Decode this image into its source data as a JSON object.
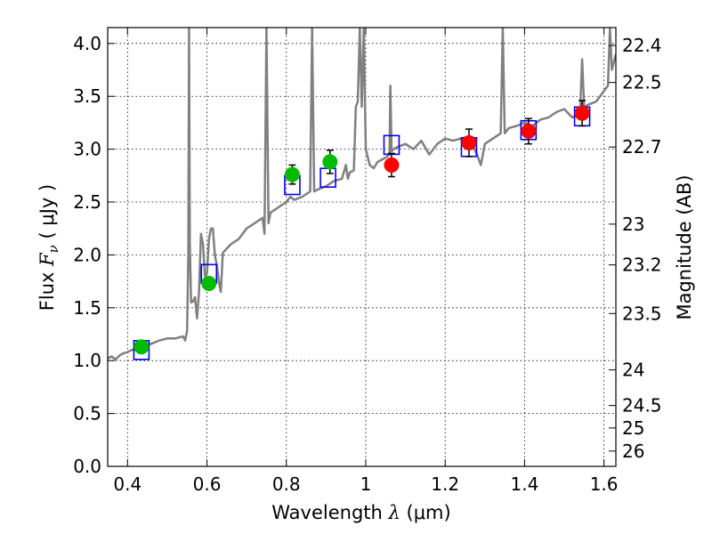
{
  "chart_data": {
    "type": "scatter",
    "xlabel": {
      "prefix": "Wavelength  ",
      "symbol": "λ",
      "unit": " (μm)"
    },
    "ylabel": {
      "prefix": "Flux  ",
      "symbol": "F",
      "sub": "ν",
      "unit": "  ( μJy )"
    },
    "y2label": "Magnitude (AB)",
    "xlim": [
      0.35,
      1.63
    ],
    "ylim": [
      0.0,
      4.15
    ],
    "grid": true,
    "x_ticks": [
      {
        "v": 0.4,
        "label": "0.4"
      },
      {
        "v": 0.6,
        "label": "0.6"
      },
      {
        "v": 0.8,
        "label": "0.8"
      },
      {
        "v": 1.0,
        "label": "1"
      },
      {
        "v": 1.2,
        "label": "1.2"
      },
      {
        "v": 1.4,
        "label": "1.4"
      },
      {
        "v": 1.6,
        "label": "1.6"
      }
    ],
    "y_ticks": [
      {
        "v": 0.0,
        "label": "0.0"
      },
      {
        "v": 0.5,
        "label": "0.5"
      },
      {
        "v": 1.0,
        "label": "1.0"
      },
      {
        "v": 1.5,
        "label": "1.5"
      },
      {
        "v": 2.0,
        "label": "2.0"
      },
      {
        "v": 2.5,
        "label": "2.5"
      },
      {
        "v": 3.0,
        "label": "3.0"
      },
      {
        "v": 3.5,
        "label": "3.5"
      },
      {
        "v": 4.0,
        "label": "4.0"
      }
    ],
    "mag_ticks": [
      {
        "mag": 22.4,
        "label": "22.4"
      },
      {
        "mag": 22.5,
        "label": "22.5"
      },
      {
        "mag": 22.7,
        "label": "22.7"
      },
      {
        "mag": 23,
        "label": "23"
      },
      {
        "mag": 23.2,
        "label": "23.2"
      },
      {
        "mag": 23.5,
        "label": "23.5"
      },
      {
        "mag": 24,
        "label": "24"
      },
      {
        "mag": 24.5,
        "label": "24.5"
      },
      {
        "mag": 25,
        "label": "25"
      },
      {
        "mag": 26,
        "label": "26"
      }
    ],
    "colors": {
      "model_line": "#808080",
      "model_box": "#0000ff",
      "optical_point": "#00bb00",
      "nir_point": "#ff0000",
      "error_bar": "#000000"
    },
    "model_spectrum": [
      [
        0.35,
        1.02
      ],
      [
        0.36,
        1.04
      ],
      [
        0.37,
        1.01
      ],
      [
        0.38,
        1.05
      ],
      [
        0.39,
        1.07
      ],
      [
        0.4,
        1.08
      ],
      [
        0.41,
        1.1
      ],
      [
        0.42,
        1.11
      ],
      [
        0.43,
        1.12
      ],
      [
        0.44,
        1.13
      ],
      [
        0.46,
        1.16
      ],
      [
        0.48,
        1.19
      ],
      [
        0.5,
        1.21
      ],
      [
        0.52,
        1.21
      ],
      [
        0.54,
        1.23
      ],
      [
        0.545,
        1.19
      ],
      [
        0.55,
        1.28
      ],
      [
        0.553,
        2.0
      ],
      [
        0.555,
        4.15
      ],
      [
        0.557,
        2.1
      ],
      [
        0.56,
        1.55
      ],
      [
        0.565,
        1.56
      ],
      [
        0.57,
        1.6
      ],
      [
        0.575,
        1.4
      ],
      [
        0.58,
        1.65
      ],
      [
        0.585,
        2.2
      ],
      [
        0.59,
        2.1
      ],
      [
        0.595,
        1.8
      ],
      [
        0.6,
        1.82
      ],
      [
        0.605,
        2.15
      ],
      [
        0.61,
        2.25
      ],
      [
        0.615,
        2.25
      ],
      [
        0.62,
        2.0
      ],
      [
        0.625,
        1.9
      ],
      [
        0.63,
        1.75
      ],
      [
        0.635,
        1.65
      ],
      [
        0.64,
        2.02
      ],
      [
        0.66,
        2.1
      ],
      [
        0.68,
        2.15
      ],
      [
        0.7,
        2.25
      ],
      [
        0.72,
        2.3
      ],
      [
        0.74,
        2.35
      ],
      [
        0.745,
        2.2
      ],
      [
        0.75,
        4.15
      ],
      [
        0.755,
        2.3
      ],
      [
        0.76,
        2.4
      ],
      [
        0.78,
        2.45
      ],
      [
        0.8,
        2.5
      ],
      [
        0.81,
        2.55
      ],
      [
        0.82,
        2.52
      ],
      [
        0.84,
        2.55
      ],
      [
        0.86,
        2.6
      ],
      [
        0.865,
        4.15
      ],
      [
        0.87,
        2.6
      ],
      [
        0.88,
        2.62
      ],
      [
        0.9,
        2.65
      ],
      [
        0.92,
        2.7
      ],
      [
        0.94,
        2.72
      ],
      [
        0.95,
        2.85
      ],
      [
        0.955,
        2.72
      ],
      [
        0.96,
        2.78
      ],
      [
        0.97,
        2.8
      ],
      [
        0.975,
        3.4
      ],
      [
        0.98,
        3.45
      ],
      [
        0.985,
        4.15
      ],
      [
        0.99,
        3.4
      ],
      [
        0.995,
        4.15
      ],
      [
        1.0,
        3.0
      ],
      [
        1.01,
        2.85
      ],
      [
        1.02,
        2.82
      ],
      [
        1.03,
        2.88
      ],
      [
        1.04,
        2.9
      ],
      [
        1.05,
        2.92
      ],
      [
        1.06,
        2.95
      ],
      [
        1.062,
        3.6
      ],
      [
        1.065,
        2.98
      ],
      [
        1.07,
        3.0
      ],
      [
        1.08,
        3.02
      ],
      [
        1.1,
        3.05
      ],
      [
        1.12,
        3.0
      ],
      [
        1.14,
        3.08
      ],
      [
        1.16,
        2.95
      ],
      [
        1.18,
        3.05
      ],
      [
        1.2,
        3.1
      ],
      [
        1.22,
        3.08
      ],
      [
        1.24,
        3.1
      ],
      [
        1.26,
        3.12
      ],
      [
        1.28,
        2.95
      ],
      [
        1.29,
        2.85
      ],
      [
        1.3,
        3.05
      ],
      [
        1.32,
        3.1
      ],
      [
        1.34,
        3.15
      ],
      [
        1.345,
        4.15
      ],
      [
        1.35,
        3.15
      ],
      [
        1.36,
        3.2
      ],
      [
        1.38,
        3.22
      ],
      [
        1.4,
        3.25
      ],
      [
        1.42,
        3.22
      ],
      [
        1.44,
        3.28
      ],
      [
        1.46,
        3.3
      ],
      [
        1.48,
        3.35
      ],
      [
        1.5,
        3.38
      ],
      [
        1.52,
        3.3
      ],
      [
        1.53,
        3.32
      ],
      [
        1.54,
        3.38
      ],
      [
        1.545,
        3.85
      ],
      [
        1.55,
        3.4
      ],
      [
        1.56,
        3.42
      ],
      [
        1.58,
        3.45
      ],
      [
        1.6,
        3.55
      ],
      [
        1.61,
        3.6
      ],
      [
        1.615,
        4.15
      ],
      [
        1.62,
        3.75
      ],
      [
        1.63,
        3.9
      ]
    ],
    "model_points": [
      {
        "x": 0.435,
        "y": 1.1
      },
      {
        "x": 0.605,
        "y": 1.82
      },
      {
        "x": 0.815,
        "y": 2.66
      },
      {
        "x": 0.905,
        "y": 2.73
      },
      {
        "x": 1.065,
        "y": 3.04
      },
      {
        "x": 1.26,
        "y": 3.02
      },
      {
        "x": 1.41,
        "y": 3.18
      },
      {
        "x": 1.545,
        "y": 3.31
      }
    ],
    "series": [
      {
        "color_key": "optical_point",
        "points": [
          {
            "x": 0.435,
            "y": 1.13,
            "err": 0.05
          },
          {
            "x": 0.605,
            "y": 1.73,
            "err": 0.03
          },
          {
            "x": 0.815,
            "y": 2.76,
            "err": 0.09
          },
          {
            "x": 0.91,
            "y": 2.88,
            "err": 0.11
          }
        ]
      },
      {
        "color_key": "nir_point",
        "points": [
          {
            "x": 1.065,
            "y": 2.85,
            "err": 0.11
          },
          {
            "x": 1.26,
            "y": 3.06,
            "err": 0.13
          },
          {
            "x": 1.41,
            "y": 3.17,
            "err": 0.12
          },
          {
            "x": 1.545,
            "y": 3.34,
            "err": 0.12
          }
        ]
      }
    ]
  }
}
